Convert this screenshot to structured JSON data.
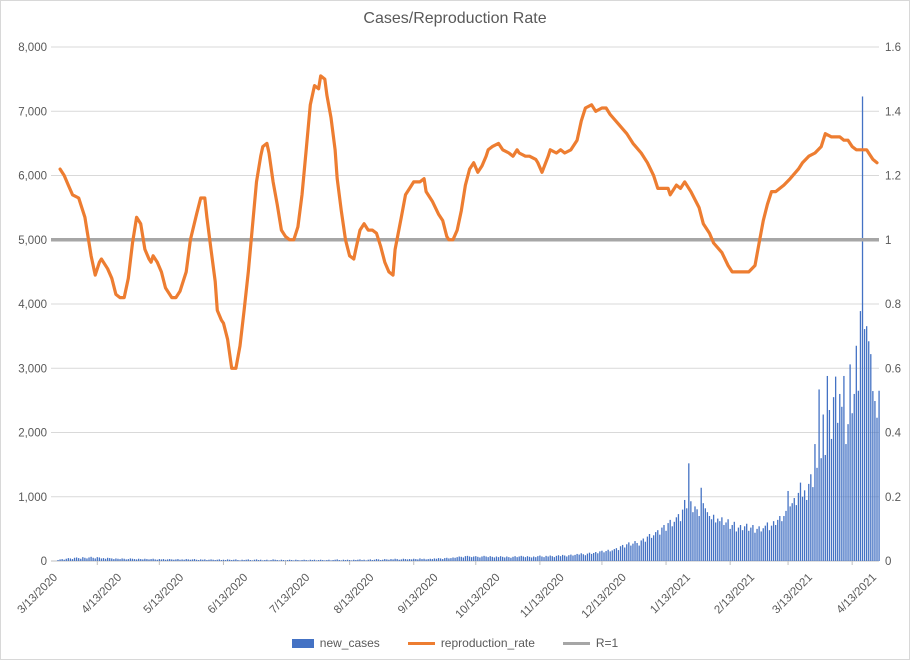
{
  "title": "Cases/Reproduction Rate",
  "legend": {
    "new_cases_label": "new_cases",
    "reproduction_rate_label": "reproduction_rate",
    "r1_label": "R=1"
  },
  "colors": {
    "bars": "#4472C4",
    "line": "#ED7D31",
    "r1_line": "#A6A6A6",
    "gridline": "#D9D9D9",
    "axis_line": "#BFBFBF",
    "axis_text": "#595959",
    "title_text": "#595959"
  },
  "chart_data": {
    "type": "bar+line combo",
    "title": "Cases/Reproduction Rate",
    "grid": "horizontal",
    "legend_position": "bottom",
    "left_axis": {
      "min": 0,
      "max": 8000,
      "step": 1000,
      "tick_labels": [
        "0",
        "1,000",
        "2,000",
        "3,000",
        "4,000",
        "5,000",
        "6,000",
        "7,000",
        "8,000"
      ]
    },
    "right_axis": {
      "min": 0,
      "max": 1.6,
      "step": 0.2,
      "tick_labels": [
        "0",
        "0.2",
        "0.4",
        "0.6",
        "0.8",
        "1",
        "1.2",
        "1.4",
        "1.6"
      ]
    },
    "x_total_days": 396,
    "x_labels": [
      {
        "label": "3/13/2020",
        "day": 0
      },
      {
        "label": "4/13/2020",
        "day": 31
      },
      {
        "label": "5/13/2020",
        "day": 61
      },
      {
        "label": "6/13/2020",
        "day": 92
      },
      {
        "label": "7/13/2020",
        "day": 122
      },
      {
        "label": "8/13/2020",
        "day": 153
      },
      {
        "label": "9/13/2020",
        "day": 184
      },
      {
        "label": "10/13/2020",
        "day": 214
      },
      {
        "label": "11/13/2020",
        "day": 245
      },
      {
        "label": "12/13/2020",
        "day": 275
      },
      {
        "label": "1/13/2021",
        "day": 306
      },
      {
        "label": "2/13/2021",
        "day": 337
      },
      {
        "label": "3/13/2021",
        "day": 365
      },
      {
        "label": "4/13/2021",
        "day": 396
      }
    ],
    "x_tick_days": [
      19,
      49,
      80,
      110,
      141,
      172,
      202,
      233,
      263,
      294,
      325,
      353,
      384
    ],
    "r1_value": 1,
    "series": [
      {
        "name": "new_cases",
        "type": "bar",
        "axis": "left",
        "values": [
          15,
          25,
          30,
          20,
          35,
          45,
          40,
          30,
          50,
          55,
          45,
          35,
          60,
          50,
          40,
          55,
          65,
          50,
          40,
          60,
          55,
          40,
          45,
          35,
          50,
          45,
          40,
          30,
          40,
          35,
          30,
          40,
          35,
          25,
          30,
          40,
          35,
          30,
          25,
          35,
          30,
          25,
          35,
          30,
          25,
          30,
          35,
          25,
          20,
          30,
          25,
          30,
          20,
          25,
          30,
          25,
          20,
          25,
          30,
          20,
          25,
          20,
          30,
          25,
          20,
          25,
          30,
          20,
          15,
          25,
          20,
          25,
          15,
          20,
          25,
          20,
          15,
          20,
          25,
          15,
          20,
          15,
          25,
          20,
          15,
          20,
          25,
          15,
          10,
          20,
          15,
          20,
          25,
          15,
          10,
          20,
          25,
          15,
          20,
          10,
          15,
          20,
          10,
          15,
          25,
          20,
          15,
          10,
          20,
          15,
          10,
          15,
          20,
          15,
          10,
          20,
          15,
          10,
          15,
          20,
          15,
          10,
          20,
          15,
          20,
          10,
          15,
          20,
          15,
          10,
          15,
          20,
          10,
          15,
          20,
          25,
          15,
          10,
          20,
          15,
          20,
          15,
          10,
          20,
          15,
          20,
          25,
          15,
          20,
          10,
          20,
          25,
          15,
          20,
          30,
          25,
          15,
          20,
          30,
          25,
          20,
          30,
          25,
          35,
          30,
          20,
          25,
          35,
          30,
          25,
          30,
          25,
          35,
          30,
          25,
          40,
          30,
          35,
          25,
          30,
          35,
          30,
          40,
          35,
          45,
          40,
          30,
          45,
          50,
          40,
          45,
          55,
          50,
          60,
          70,
          65,
          55,
          75,
          80,
          70,
          60,
          70,
          75,
          65,
          55,
          70,
          80,
          70,
          60,
          75,
          65,
          55,
          70,
          60,
          75,
          65,
          55,
          70,
          60,
          50,
          65,
          75,
          60,
          70,
          80,
          70,
          60,
          75,
          65,
          55,
          70,
          60,
          75,
          85,
          70,
          60,
          80,
          70,
          85,
          75,
          60,
          80,
          90,
          75,
          95,
          85,
          70,
          90,
          100,
          85,
          95,
          110,
          100,
          120,
          105,
          90,
          115,
          130,
          110,
          125,
          140,
          120,
          150,
          160,
          135,
          155,
          175,
          150,
          165,
          185,
          200,
          170,
          230,
          250,
          210,
          260,
          290,
          240,
          270,
          310,
          280,
          240,
          320,
          350,
          300,
          380,
          420,
          360,
          400,
          450,
          480,
          410,
          520,
          560,
          470,
          590,
          640,
          540,
          610,
          680,
          730,
          620,
          800,
          950,
          820,
          1520,
          930,
          760,
          850,
          805,
          700,
          1140,
          900,
          820,
          760,
          700,
          650,
          720,
          600,
          660,
          620,
          680,
          560,
          600,
          650,
          500,
          560,
          610,
          460,
          520,
          560,
          480,
          540,
          580,
          470,
          520,
          560,
          440,
          500,
          540,
          460,
          510,
          550,
          600,
          480,
          550,
          620,
          560,
          640,
          700,
          620,
          700,
          780,
          1090,
          850,
          900,
          980,
          870,
          1060,
          1220,
          1000,
          1100,
          950,
          1200,
          1350,
          1150,
          1820,
          1450,
          2670,
          1600,
          2280,
          1650,
          2880,
          2350,
          1900,
          2550,
          2870,
          2150,
          2600,
          2400,
          2880,
          1820,
          2130,
          3060,
          2300,
          2600,
          3350,
          2650,
          3890,
          7230,
          3610,
          3655,
          3420,
          3220,
          2645,
          2490,
          2230,
          2650
        ]
      },
      {
        "name": "reproduction_rate",
        "type": "line",
        "axis": "right",
        "points": [
          [
            1,
            1.22
          ],
          [
            3,
            1.2
          ],
          [
            5,
            1.17
          ],
          [
            7,
            1.14
          ],
          [
            10,
            1.13
          ],
          [
            13,
            1.07
          ],
          [
            16,
            0.95
          ],
          [
            18,
            0.89
          ],
          [
            20,
            0.93
          ],
          [
            21,
            0.94
          ],
          [
            24,
            0.91
          ],
          [
            26,
            0.88
          ],
          [
            28,
            0.83
          ],
          [
            30,
            0.82
          ],
          [
            32,
            0.82
          ],
          [
            34,
            0.88
          ],
          [
            36,
            0.99
          ],
          [
            38,
            1.07
          ],
          [
            40,
            1.05
          ],
          [
            42,
            0.97
          ],
          [
            44,
            0.94
          ],
          [
            45,
            0.93
          ],
          [
            46,
            0.95
          ],
          [
            48,
            0.93
          ],
          [
            50,
            0.9
          ],
          [
            52,
            0.85
          ],
          [
            55,
            0.82
          ],
          [
            57,
            0.82
          ],
          [
            59,
            0.84
          ],
          [
            62,
            0.9
          ],
          [
            64,
            1
          ],
          [
            67,
            1.08
          ],
          [
            69,
            1.13
          ],
          [
            71,
            1.13
          ],
          [
            72,
            1.07
          ],
          [
            74,
            0.97
          ],
          [
            76,
            0.87
          ],
          [
            77,
            0.78
          ],
          [
            79,
            0.75
          ],
          [
            80,
            0.74
          ],
          [
            82,
            0.69
          ],
          [
            84,
            0.6
          ],
          [
            86,
            0.6
          ],
          [
            88,
            0.67
          ],
          [
            90,
            0.78
          ],
          [
            92,
            0.9
          ],
          [
            94,
            1.04
          ],
          [
            96,
            1.18
          ],
          [
            98,
            1.26
          ],
          [
            99,
            1.29
          ],
          [
            101,
            1.3
          ],
          [
            102,
            1.27
          ],
          [
            104,
            1.18
          ],
          [
            106,
            1.11
          ],
          [
            108,
            1.03
          ],
          [
            110,
            1.01
          ],
          [
            112,
            1
          ],
          [
            114,
            1
          ],
          [
            116,
            1.04
          ],
          [
            118,
            1.14
          ],
          [
            120,
            1.28
          ],
          [
            122,
            1.42
          ],
          [
            124,
            1.48
          ],
          [
            126,
            1.47
          ],
          [
            127,
            1.51
          ],
          [
            129,
            1.5
          ],
          [
            130,
            1.45
          ],
          [
            132,
            1.38
          ],
          [
            134,
            1.28
          ],
          [
            135,
            1.19
          ],
          [
            137,
            1.09
          ],
          [
            139,
            1
          ],
          [
            141,
            0.95
          ],
          [
            143,
            0.94
          ],
          [
            144,
            0.97
          ],
          [
            146,
            1.03
          ],
          [
            148,
            1.05
          ],
          [
            150,
            1.03
          ],
          [
            152,
            1.03
          ],
          [
            154,
            1.02
          ],
          [
            156,
            0.98
          ],
          [
            158,
            0.93
          ],
          [
            160,
            0.9
          ],
          [
            162,
            0.89
          ],
          [
            163,
            0.97
          ],
          [
            166,
            1.07
          ],
          [
            168,
            1.14
          ],
          [
            170,
            1.16
          ],
          [
            172,
            1.18
          ],
          [
            175,
            1.18
          ],
          [
            177,
            1.19
          ],
          [
            178,
            1.15
          ],
          [
            181,
            1.12
          ],
          [
            184,
            1.08
          ],
          [
            186,
            1.06
          ],
          [
            188,
            1.01
          ],
          [
            189,
            1
          ],
          [
            191,
            1
          ],
          [
            193,
            1.03
          ],
          [
            195,
            1.09
          ],
          [
            197,
            1.17
          ],
          [
            199,
            1.22
          ],
          [
            201,
            1.24
          ],
          [
            203,
            1.21
          ],
          [
            205,
            1.23
          ],
          [
            207,
            1.26
          ],
          [
            208,
            1.28
          ],
          [
            210,
            1.29
          ],
          [
            213,
            1.3
          ],
          [
            215,
            1.28
          ],
          [
            218,
            1.27
          ],
          [
            220,
            1.26
          ],
          [
            222,
            1.28
          ],
          [
            223,
            1.27
          ],
          [
            226,
            1.26
          ],
          [
            228,
            1.26
          ],
          [
            231,
            1.25
          ],
          [
            232,
            1.24
          ],
          [
            234,
            1.21
          ],
          [
            237,
            1.26
          ],
          [
            238,
            1.28
          ],
          [
            241,
            1.27
          ],
          [
            243,
            1.28
          ],
          [
            245,
            1.27
          ],
          [
            248,
            1.28
          ],
          [
            251,
            1.31
          ],
          [
            253,
            1.37
          ],
          [
            255,
            1.41
          ],
          [
            258,
            1.42
          ],
          [
            260,
            1.4
          ],
          [
            263,
            1.41
          ],
          [
            265,
            1.41
          ],
          [
            267,
            1.39
          ],
          [
            271,
            1.36
          ],
          [
            275,
            1.33
          ],
          [
            278,
            1.3
          ],
          [
            282,
            1.27
          ],
          [
            285,
            1.24
          ],
          [
            288,
            1.2
          ],
          [
            290,
            1.16
          ],
          [
            293,
            1.16
          ],
          [
            295,
            1.16
          ],
          [
            296,
            1.14
          ],
          [
            299,
            1.17
          ],
          [
            301,
            1.16
          ],
          [
            303,
            1.18
          ],
          [
            306,
            1.15
          ],
          [
            310,
            1.1
          ],
          [
            312,
            1.05
          ],
          [
            315,
            1.02
          ],
          [
            317,
            0.99
          ],
          [
            321,
            0.96
          ],
          [
            324,
            0.92
          ],
          [
            326,
            0.9
          ],
          [
            329,
            0.9
          ],
          [
            332,
            0.9
          ],
          [
            334,
            0.9
          ],
          [
            337,
            0.92
          ],
          [
            339,
            0.99
          ],
          [
            341,
            1.06
          ],
          [
            343,
            1.11
          ],
          [
            345,
            1.15
          ],
          [
            347,
            1.15
          ],
          [
            349,
            1.16
          ],
          [
            351,
            1.17
          ],
          [
            354,
            1.19
          ],
          [
            358,
            1.22
          ],
          [
            360,
            1.24
          ],
          [
            363,
            1.26
          ],
          [
            366,
            1.27
          ],
          [
            369,
            1.29
          ],
          [
            371,
            1.33
          ],
          [
            374,
            1.32
          ],
          [
            376,
            1.32
          ],
          [
            378,
            1.32
          ],
          [
            380,
            1.31
          ],
          [
            382,
            1.31
          ],
          [
            384,
            1.29
          ],
          [
            386,
            1.28
          ],
          [
            389,
            1.28
          ],
          [
            391,
            1.28
          ],
          [
            392,
            1.27
          ],
          [
            394,
            1.25
          ],
          [
            396,
            1.24
          ]
        ]
      },
      {
        "name": "R=1",
        "type": "horizontal-line",
        "axis": "right",
        "value": 1
      }
    ]
  }
}
